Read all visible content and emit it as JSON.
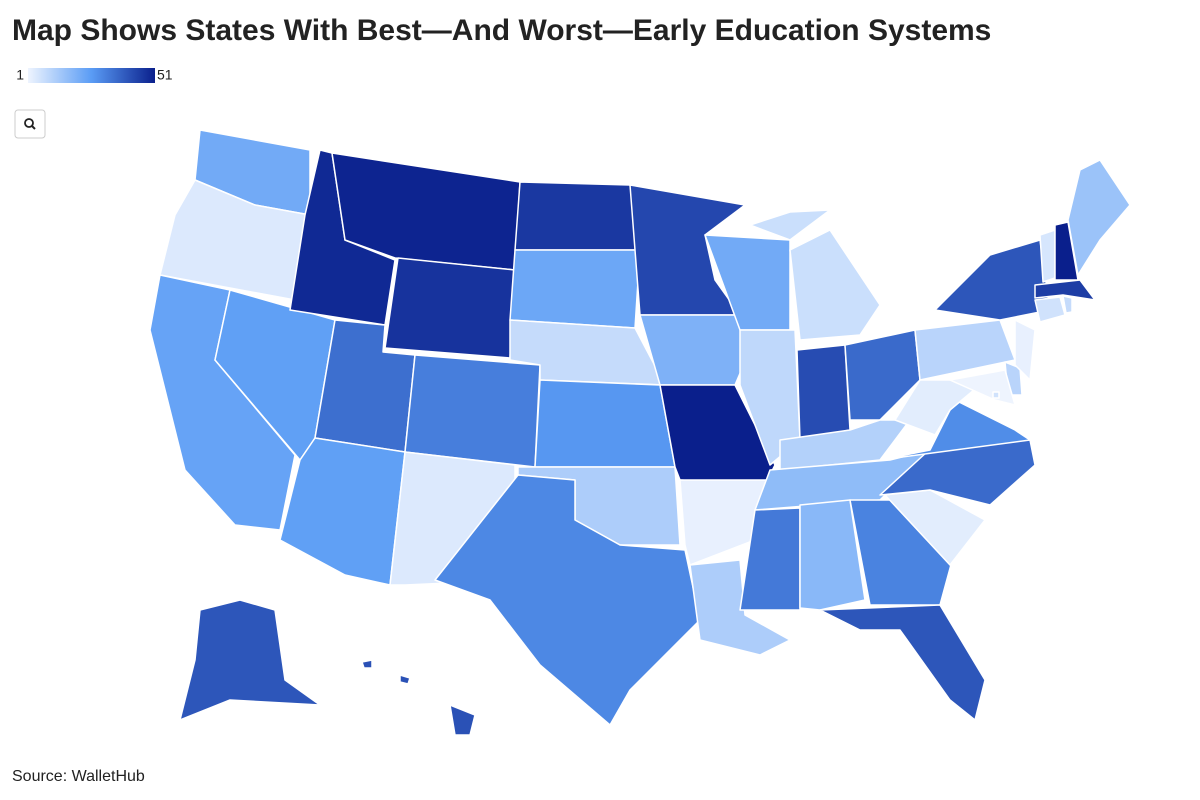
{
  "chart_data": {
    "type": "choropleth",
    "title": "Map Shows States With Best—And Worst—Early Education Systems",
    "values": [
      22,
      4,
      24,
      25,
      49,
      50,
      47,
      35,
      25,
      32,
      4,
      46,
      23,
      8,
      27,
      12,
      30,
      43,
      20,
      51,
      2,
      12,
      22,
      9,
      7,
      42,
      36,
      11,
      17,
      33,
      18,
      31,
      40,
      3,
      36,
      29,
      3,
      10,
      40,
      10,
      1,
      2,
      6,
      8,
      45,
      5,
      51,
      15,
      40,
      41,
      6
    ],
    "clim": [
      1,
      51
    ],
    "cticks": [
      1,
      51
    ],
    "colors": [
      "#eef4fe",
      "#5a9cf5",
      "#0a1f8c"
    ],
    "source": "Source: WalletHub"
  }
}
